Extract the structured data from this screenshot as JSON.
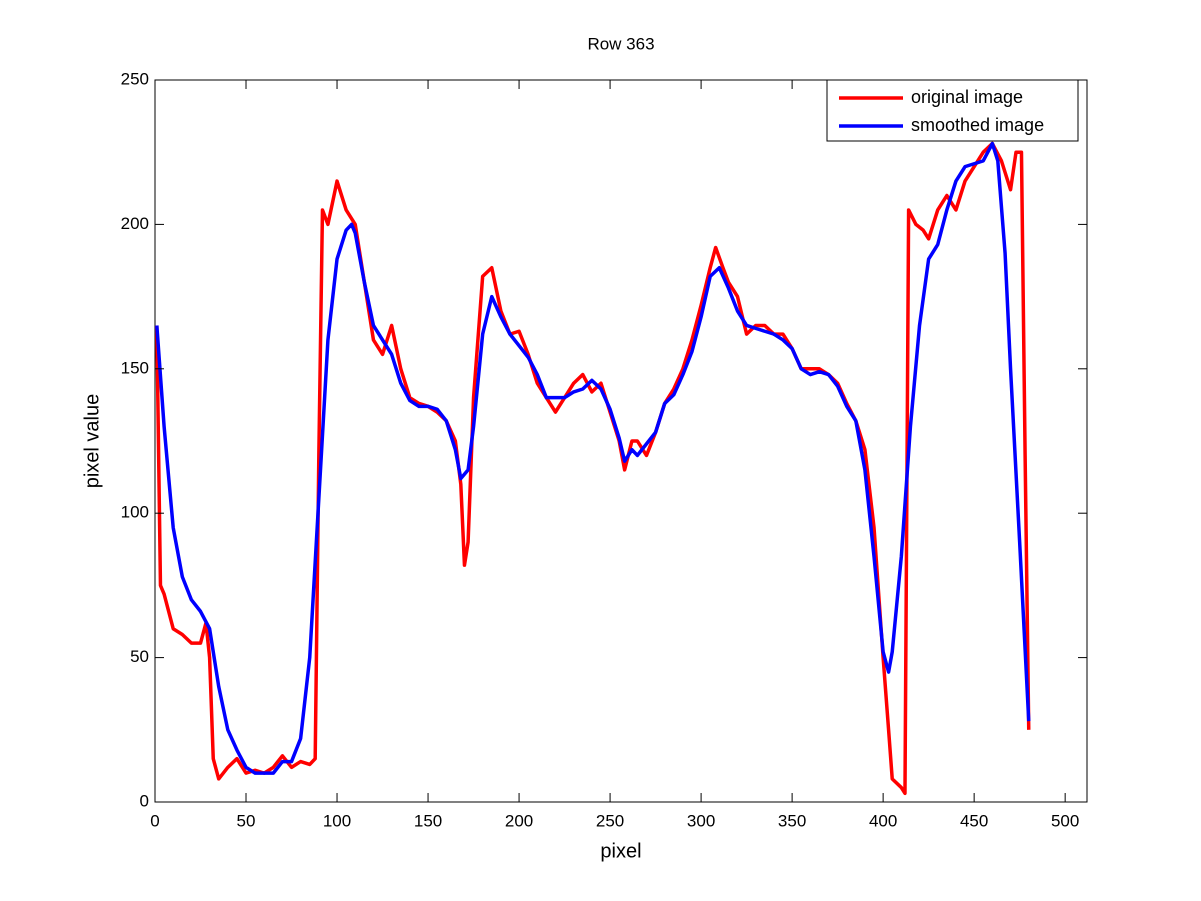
{
  "chart_data": {
    "type": "line",
    "title": "Row 363",
    "x_label": "pixel",
    "y_label": "pixel value",
    "xlim": [
      0,
      512
    ],
    "ylim": [
      0,
      250
    ],
    "xticks": [
      0,
      50,
      100,
      150,
      200,
      250,
      300,
      350,
      400,
      450,
      500
    ],
    "yticks": [
      0,
      50,
      100,
      150,
      200,
      250
    ],
    "legend": "upper right",
    "series": [
      {
        "name": "original image",
        "color": "#ff0000",
        "x": [
          1,
          3,
          5,
          10,
          15,
          20,
          25,
          28,
          30,
          32,
          35,
          40,
          45,
          50,
          55,
          60,
          65,
          70,
          75,
          80,
          85,
          88,
          90,
          92,
          95,
          100,
          105,
          110,
          115,
          120,
          125,
          130,
          135,
          140,
          145,
          150,
          155,
          160,
          165,
          168,
          170,
          172,
          175,
          180,
          185,
          190,
          195,
          200,
          205,
          210,
          215,
          220,
          225,
          230,
          235,
          240,
          245,
          250,
          255,
          258,
          262,
          265,
          270,
          275,
          280,
          285,
          290,
          295,
          300,
          305,
          308,
          312,
          315,
          320,
          325,
          330,
          335,
          340,
          345,
          350,
          355,
          360,
          365,
          370,
          375,
          380,
          385,
          390,
          395,
          400,
          403,
          405,
          410,
          412,
          414,
          418,
          422,
          425,
          430,
          435,
          440,
          445,
          450,
          455,
          460,
          465,
          470,
          473,
          476,
          478,
          480
        ],
        "values": [
          165,
          75,
          72,
          60,
          58,
          55,
          55,
          62,
          50,
          15,
          8,
          12,
          15,
          10,
          11,
          10,
          12,
          16,
          12,
          14,
          13,
          15,
          120,
          205,
          200,
          215,
          205,
          200,
          180,
          160,
          155,
          165,
          150,
          140,
          138,
          137,
          135,
          132,
          125,
          110,
          82,
          90,
          140,
          182,
          185,
          170,
          162,
          163,
          155,
          145,
          140,
          135,
          140,
          145,
          148,
          142,
          145,
          135,
          125,
          115,
          125,
          125,
          120,
          128,
          138,
          143,
          150,
          160,
          172,
          185,
          192,
          185,
          180,
          175,
          162,
          165,
          165,
          162,
          162,
          157,
          150,
          150,
          150,
          148,
          145,
          138,
          132,
          122,
          95,
          50,
          25,
          8,
          5,
          3,
          205,
          200,
          198,
          195,
          205,
          210,
          205,
          215,
          220,
          225,
          228,
          222,
          212,
          225,
          225,
          120,
          25
        ]
      },
      {
        "name": "smoothed image",
        "color": "#0000ff",
        "x": [
          1,
          5,
          10,
          15,
          20,
          25,
          30,
          35,
          40,
          45,
          50,
          55,
          60,
          65,
          70,
          75,
          80,
          85,
          90,
          95,
          100,
          105,
          108,
          110,
          115,
          120,
          125,
          130,
          135,
          140,
          145,
          150,
          155,
          160,
          165,
          168,
          172,
          175,
          180,
          185,
          190,
          195,
          200,
          205,
          210,
          215,
          220,
          225,
          230,
          235,
          240,
          245,
          250,
          255,
          258,
          262,
          265,
          270,
          275,
          280,
          285,
          290,
          295,
          300,
          305,
          310,
          315,
          320,
          325,
          330,
          335,
          340,
          345,
          350,
          355,
          360,
          365,
          370,
          375,
          380,
          385,
          390,
          395,
          400,
          403,
          405,
          410,
          415,
          420,
          425,
          430,
          435,
          440,
          445,
          450,
          455,
          460,
          463,
          467,
          470,
          475,
          480
        ],
        "values": [
          165,
          130,
          95,
          78,
          70,
          66,
          60,
          40,
          25,
          18,
          12,
          10,
          10,
          10,
          14,
          14,
          22,
          50,
          105,
          160,
          188,
          198,
          200,
          197,
          180,
          165,
          160,
          155,
          145,
          139,
          137,
          137,
          136,
          132,
          122,
          112,
          115,
          130,
          162,
          175,
          168,
          162,
          158,
          154,
          148,
          140,
          140,
          140,
          142,
          143,
          146,
          143,
          136,
          126,
          118,
          122,
          120,
          124,
          128,
          138,
          141,
          148,
          156,
          168,
          182,
          185,
          178,
          170,
          165,
          164,
          163,
          162,
          160,
          157,
          150,
          148,
          149,
          148,
          144,
          137,
          132,
          115,
          85,
          52,
          45,
          52,
          85,
          130,
          165,
          188,
          193,
          205,
          215,
          220,
          221,
          222,
          228,
          222,
          190,
          150,
          90,
          28
        ]
      }
    ]
  }
}
